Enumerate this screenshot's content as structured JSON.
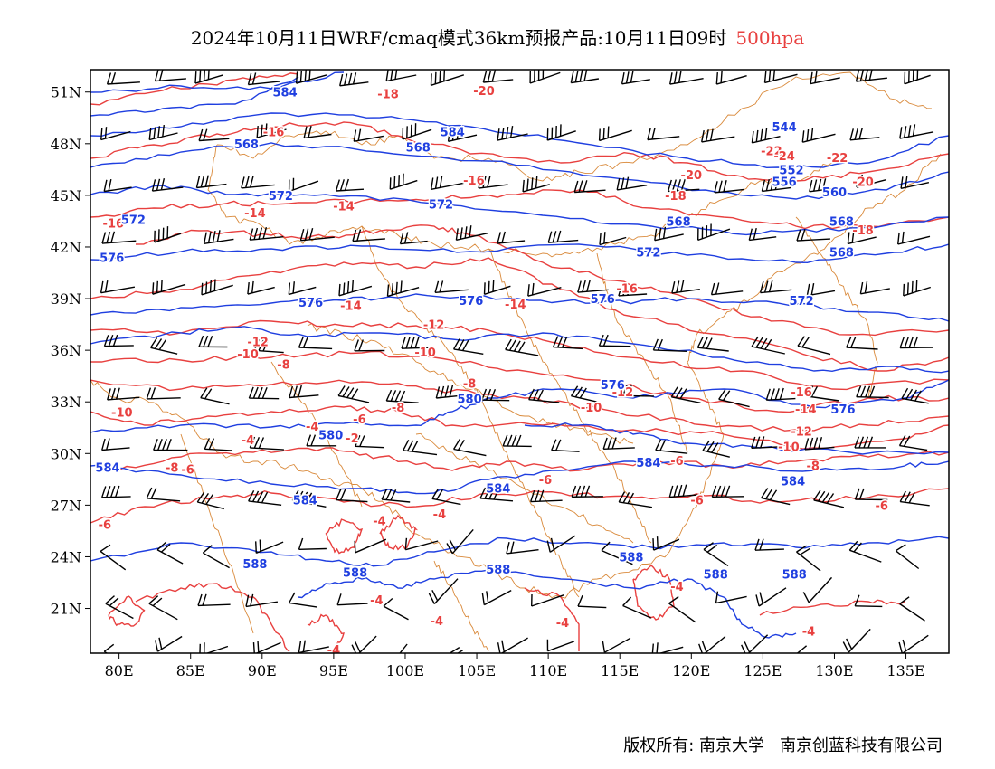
{
  "title": {
    "main": "2024年10月11日WRF/cmaq模式36km预报产品:10月11日09时",
    "level": "500hpa"
  },
  "map": {
    "lat_ticks": [
      "51N",
      "48N",
      "45N",
      "42N",
      "39N",
      "36N",
      "33N",
      "30N",
      "27N",
      "24N",
      "21N"
    ],
    "lon_ticks": [
      "80E",
      "85E",
      "90E",
      "95E",
      "100E",
      "105E",
      "110E",
      "115E",
      "120E",
      "125E",
      "130E",
      "135E"
    ],
    "height_contour_labels": [
      {
        "t": "584",
        "lon": 91.6,
        "lat": 51.0
      },
      {
        "t": "584",
        "lon": 103.3,
        "lat": 48.7
      },
      {
        "t": "568",
        "lon": 88.9,
        "lat": 48.0
      },
      {
        "t": "568",
        "lon": 100.9,
        "lat": 47.8
      },
      {
        "t": "544",
        "lon": 126.5,
        "lat": 49.0
      },
      {
        "t": "552",
        "lon": 127.0,
        "lat": 46.5
      },
      {
        "t": "556",
        "lon": 126.5,
        "lat": 45.8
      },
      {
        "t": "560",
        "lon": 130.0,
        "lat": 45.2
      },
      {
        "t": "572",
        "lon": 91.3,
        "lat": 45.0
      },
      {
        "t": "572",
        "lon": 102.5,
        "lat": 44.5
      },
      {
        "t": "572",
        "lon": 81.0,
        "lat": 43.6
      },
      {
        "t": "568",
        "lon": 119.1,
        "lat": 43.5
      },
      {
        "t": "568",
        "lon": 130.5,
        "lat": 43.5
      },
      {
        "t": "568",
        "lon": 130.5,
        "lat": 41.7
      },
      {
        "t": "572",
        "lon": 117.0,
        "lat": 41.7
      },
      {
        "t": "576",
        "lon": 79.5,
        "lat": 41.4
      },
      {
        "t": "576",
        "lon": 93.4,
        "lat": 38.8
      },
      {
        "t": "576",
        "lon": 104.6,
        "lat": 38.9
      },
      {
        "t": "576",
        "lon": 113.8,
        "lat": 39.0
      },
      {
        "t": "572",
        "lon": 127.7,
        "lat": 38.9
      },
      {
        "t": "576",
        "lon": 130.6,
        "lat": 32.6
      },
      {
        "t": "580",
        "lon": 104.5,
        "lat": 33.2
      },
      {
        "t": "580",
        "lon": 94.8,
        "lat": 31.1
      },
      {
        "t": "576",
        "lon": 114.5,
        "lat": 34.0
      },
      {
        "t": "584",
        "lon": 117.0,
        "lat": 29.5
      },
      {
        "t": "584",
        "lon": 79.2,
        "lat": 29.2
      },
      {
        "t": "584",
        "lon": 127.1,
        "lat": 28.4
      },
      {
        "t": "584",
        "lon": 93.0,
        "lat": 27.3
      },
      {
        "t": "584",
        "lon": 106.5,
        "lat": 28.0
      },
      {
        "t": "588",
        "lon": 89.5,
        "lat": 23.6
      },
      {
        "t": "588",
        "lon": 96.5,
        "lat": 23.1
      },
      {
        "t": "588",
        "lon": 106.5,
        "lat": 23.3
      },
      {
        "t": "588",
        "lon": 115.8,
        "lat": 24.0
      },
      {
        "t": "588",
        "lon": 121.7,
        "lat": 23.0
      },
      {
        "t": "588",
        "lon": 127.2,
        "lat": 23.0
      }
    ],
    "temperature_contour_labels": [
      {
        "t": "-18",
        "lon": 98.8,
        "lat": 50.9
      },
      {
        "t": "-20",
        "lon": 105.5,
        "lat": 51.1
      },
      {
        "t": "-16",
        "lon": 90.8,
        "lat": 48.7
      },
      {
        "t": "-16",
        "lon": 104.8,
        "lat": 45.9
      },
      {
        "t": "-20",
        "lon": 120.0,
        "lat": 46.2
      },
      {
        "t": "-22",
        "lon": 125.6,
        "lat": 47.6
      },
      {
        "t": "-24",
        "lon": 126.5,
        "lat": 47.3
      },
      {
        "t": "-22",
        "lon": 130.2,
        "lat": 47.2
      },
      {
        "t": "-20",
        "lon": 132.0,
        "lat": 45.8
      },
      {
        "t": "-18",
        "lon": 118.9,
        "lat": 45.0
      },
      {
        "t": "-18",
        "lon": 132.0,
        "lat": 43.0
      },
      {
        "t": "-16",
        "lon": 79.6,
        "lat": 43.4
      },
      {
        "t": "-14",
        "lon": 89.5,
        "lat": 44.0
      },
      {
        "t": "-14",
        "lon": 95.7,
        "lat": 44.4
      },
      {
        "t": "-16",
        "lon": 115.5,
        "lat": 39.6
      },
      {
        "t": "-14",
        "lon": 96.2,
        "lat": 38.6
      },
      {
        "t": "-14",
        "lon": 107.7,
        "lat": 38.7
      },
      {
        "t": "-12",
        "lon": 102.0,
        "lat": 37.5
      },
      {
        "t": "-12",
        "lon": 89.7,
        "lat": 36.5
      },
      {
        "t": "-10",
        "lon": 89.0,
        "lat": 35.8
      },
      {
        "t": "-10",
        "lon": 101.4,
        "lat": 35.9
      },
      {
        "t": "-8",
        "lon": 91.5,
        "lat": 35.2
      },
      {
        "t": "-8",
        "lon": 104.5,
        "lat": 34.1
      },
      {
        "t": "-16",
        "lon": 127.7,
        "lat": 33.6
      },
      {
        "t": "-12",
        "lon": 115.2,
        "lat": 33.6
      },
      {
        "t": "-14",
        "lon": 128.0,
        "lat": 32.6
      },
      {
        "t": "-10",
        "lon": 80.2,
        "lat": 32.4
      },
      {
        "t": "-8",
        "lon": 99.5,
        "lat": 32.7
      },
      {
        "t": "-10",
        "lon": 113.0,
        "lat": 32.7
      },
      {
        "t": "-6",
        "lon": 96.8,
        "lat": 32.0
      },
      {
        "t": "-4",
        "lon": 93.5,
        "lat": 31.6
      },
      {
        "t": "-12",
        "lon": 127.7,
        "lat": 31.3
      },
      {
        "t": "-4",
        "lon": 89.0,
        "lat": 30.8
      },
      {
        "t": "-2",
        "lon": 96.3,
        "lat": 30.9
      },
      {
        "t": "-10",
        "lon": 126.8,
        "lat": 30.4
      },
      {
        "t": "-8",
        "lon": 83.7,
        "lat": 29.2
      },
      {
        "t": "-6",
        "lon": 84.8,
        "lat": 29.1
      },
      {
        "t": "-8",
        "lon": 128.5,
        "lat": 29.3
      },
      {
        "t": "-6",
        "lon": 119.0,
        "lat": 29.6
      },
      {
        "t": "-6",
        "lon": 109.8,
        "lat": 28.5
      },
      {
        "t": "-6",
        "lon": 120.4,
        "lat": 27.3
      },
      {
        "t": "-6",
        "lon": 133.3,
        "lat": 27.0
      },
      {
        "t": "-6",
        "lon": 79.0,
        "lat": 25.9
      },
      {
        "t": "-4",
        "lon": 98.2,
        "lat": 26.1
      },
      {
        "t": "-4",
        "lon": 102.4,
        "lat": 26.5
      },
      {
        "t": "-4",
        "lon": 119.0,
        "lat": 22.3
      },
      {
        "t": "-4",
        "lon": 98.0,
        "lat": 21.5
      },
      {
        "t": "-4",
        "lon": 102.2,
        "lat": 20.3
      },
      {
        "t": "-4",
        "lon": 111.0,
        "lat": 20.2
      },
      {
        "t": "-4",
        "lon": 128.2,
        "lat": 19.7
      },
      {
        "t": "-4",
        "lon": 95.0,
        "lat": 18.6
      }
    ]
  },
  "colors": {
    "height_contour": "#1f3fe0",
    "temperature_contour": "#e8403f",
    "boundaries": "#d9893a",
    "wind_barbs": "#000000",
    "level_highlight": "#e8403f"
  },
  "footer": {
    "left": "版权所有: 南京大学",
    "right": "南京创蓝科技有限公司"
  }
}
